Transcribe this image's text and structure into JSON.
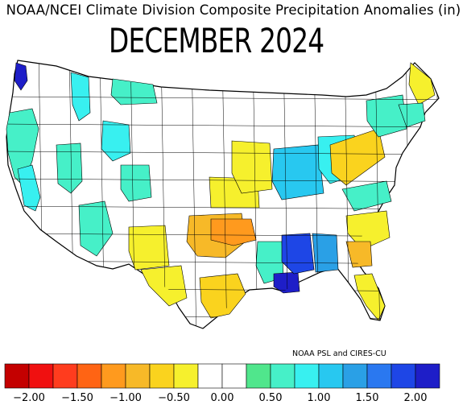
{
  "title": "NOAA/NCEI Climate Division Composite Precipitation Anomalies (in)",
  "subtitle": "DECEMBER 2024",
  "credit": "NOAA PSL and CIRES-CU",
  "legend": {
    "colors": [
      "#c40000",
      "#f01010",
      "#ff3c1e",
      "#ff6414",
      "#ff9a1e",
      "#f7b928",
      "#fad31e",
      "#f6f02d",
      "#ffffff",
      "#ffffff",
      "#50e68c",
      "#46f0c8",
      "#38f0f0",
      "#28c8f0",
      "#2aa0e6",
      "#2a78f0",
      "#1e46e6",
      "#1e1ec8"
    ],
    "tick_labels": [
      "−2.00",
      "−1.50",
      "−1.00",
      "−0.50",
      "0.00",
      "0.50",
      "1.00",
      "1.50",
      "2.00"
    ]
  },
  "map": {
    "land_color": "#ffffff",
    "border_color": "#000000",
    "regions": [
      {
        "name": "pacific-northwest-coast",
        "anomaly": 0.5
      },
      {
        "name": "washington-coast",
        "anomaly": 2.0
      },
      {
        "name": "idaho-panhandle",
        "anomaly": 0.75
      },
      {
        "name": "california-central",
        "anomaly": 0.9
      },
      {
        "name": "nevada-east",
        "anomaly": 0.5
      },
      {
        "name": "utah-north",
        "anomaly": 0.75
      },
      {
        "name": "arizona-south",
        "anomaly": 0.5
      },
      {
        "name": "colorado-west",
        "anomaly": 0.6
      },
      {
        "name": "montana-central",
        "anomaly": 0.5
      },
      {
        "name": "new-mexico-east",
        "anomaly": -0.4
      },
      {
        "name": "texas-west",
        "anomaly": -0.4
      },
      {
        "name": "texas-central",
        "anomaly": -0.9
      },
      {
        "name": "texas-south",
        "anomaly": -0.6
      },
      {
        "name": "oklahoma-east",
        "anomaly": -1.2
      },
      {
        "name": "kansas-east",
        "anomaly": -0.5
      },
      {
        "name": "iowa-missouri",
        "anomaly": -0.4
      },
      {
        "name": "arkansas-east",
        "anomaly": 0.6
      },
      {
        "name": "louisiana-coast",
        "anomaly": 2.0
      },
      {
        "name": "mississippi",
        "anomaly": 1.9
      },
      {
        "name": "alabama",
        "anomaly": 1.3
      },
      {
        "name": "illinois-indiana",
        "anomaly": 1.1
      },
      {
        "name": "ohio-valley",
        "anomaly": 0.9
      },
      {
        "name": "appalachians",
        "anomaly": -0.7
      },
      {
        "name": "virginia",
        "anomaly": 0.6
      },
      {
        "name": "carolinas",
        "anomaly": -0.5
      },
      {
        "name": "georgia-east",
        "anomaly": -0.8
      },
      {
        "name": "florida-peninsula",
        "anomaly": -0.5
      },
      {
        "name": "northeast",
        "anomaly": 0.7
      },
      {
        "name": "maine-north",
        "anomaly": -0.3
      },
      {
        "name": "new-england-coast",
        "anomaly": 0.5
      }
    ]
  }
}
